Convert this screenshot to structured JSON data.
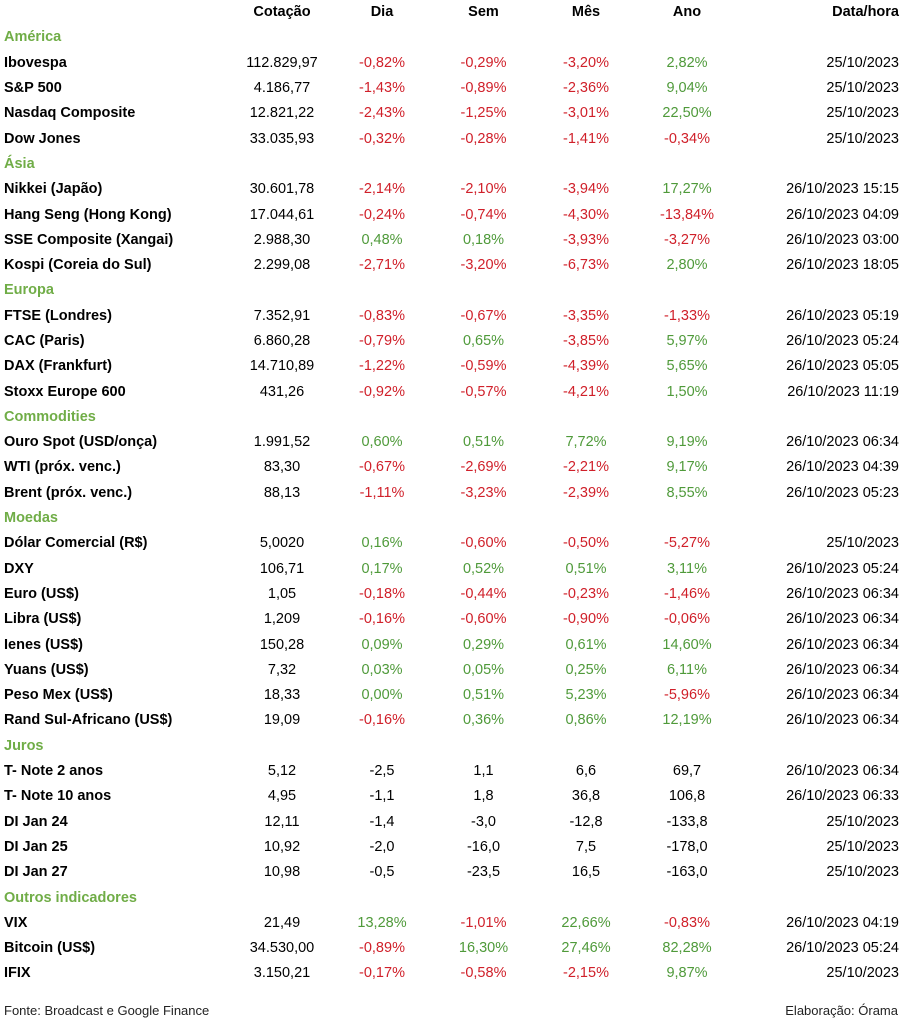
{
  "headers": {
    "name": "",
    "cotacao": "Cotação",
    "dia": "Dia",
    "sem": "Sem",
    "mes": "Mês",
    "ano": "Ano",
    "datahora": "Data/hora"
  },
  "colors": {
    "section": "#70ad47",
    "positive": "#4f9a3a",
    "negative": "#d0202a",
    "shade": "#f2f2f2"
  },
  "sections": [
    {
      "title": "América",
      "rows": [
        {
          "name": "Ibovespa",
          "cot": "112.829,97",
          "dia": "-0,82%",
          "sem": "-0,29%",
          "mes": "-3,20%",
          "ano": "2,82%",
          "dt": "25/10/2023"
        },
        {
          "name": "S&P 500",
          "cot": "4.186,77",
          "dia": "-1,43%",
          "sem": "-0,89%",
          "mes": "-2,36%",
          "ano": "9,04%",
          "dt": "25/10/2023"
        },
        {
          "name": "Nasdaq Composite",
          "cot": "12.821,22",
          "dia": "-2,43%",
          "sem": "-1,25%",
          "mes": "-3,01%",
          "ano": "22,50%",
          "dt": "25/10/2023"
        },
        {
          "name": "Dow Jones",
          "cot": "33.035,93",
          "dia": "-0,32%",
          "sem": "-0,28%",
          "mes": "-1,41%",
          "ano": "-0,34%",
          "dt": "25/10/2023"
        }
      ]
    },
    {
      "title": "Ásia",
      "rows": [
        {
          "name": "Nikkei (Japão)",
          "cot": "30.601,78",
          "dia": "-2,14%",
          "sem": "-2,10%",
          "mes": "-3,94%",
          "ano": "17,27%",
          "dt": "26/10/2023 15:15"
        },
        {
          "name": "Hang Seng (Hong Kong)",
          "cot": "17.044,61",
          "dia": "-0,24%",
          "sem": "-0,74%",
          "mes": "-4,30%",
          "ano": "-13,84%",
          "dt": "26/10/2023 04:09"
        },
        {
          "name": "SSE Composite (Xangai)",
          "cot": "2.988,30",
          "dia": "0,48%",
          "sem": "0,18%",
          "mes": "-3,93%",
          "ano": "-3,27%",
          "dt": "26/10/2023 03:00"
        },
        {
          "name": "Kospi (Coreia do Sul)",
          "cot": "2.299,08",
          "dia": "-2,71%",
          "sem": "-3,20%",
          "mes": "-6,73%",
          "ano": "2,80%",
          "dt": "26/10/2023 18:05"
        }
      ]
    },
    {
      "title": "Europa",
      "rows": [
        {
          "name": "FTSE (Londres)",
          "cot": "7.352,91",
          "dia": "-0,83%",
          "sem": "-0,67%",
          "mes": "-3,35%",
          "ano": "-1,33%",
          "dt": "26/10/2023 05:19"
        },
        {
          "name": "CAC (Paris)",
          "cot": "6.860,28",
          "dia": "-0,79%",
          "sem": "0,65%",
          "mes": "-3,85%",
          "ano": "5,97%",
          "dt": "26/10/2023 05:24"
        },
        {
          "name": "DAX (Frankfurt)",
          "cot": "14.710,89",
          "dia": "-1,22%",
          "sem": "-0,59%",
          "mes": "-4,39%",
          "ano": "5,65%",
          "dt": "26/10/2023 05:05"
        },
        {
          "name": "Stoxx Europe 600",
          "cot": "431,26",
          "dia": "-0,92%",
          "sem": "-0,57%",
          "mes": "-4,21%",
          "ano": "1,50%",
          "dt": "26/10/2023 11:19"
        }
      ]
    },
    {
      "title": "Commodities",
      "rows": [
        {
          "name": "Ouro Spot (USD/onça)",
          "cot": "1.991,52",
          "dia": "0,60%",
          "sem": "0,51%",
          "mes": "7,72%",
          "ano": "9,19%",
          "dt": "26/10/2023 06:34"
        },
        {
          "name": "WTI (próx. venc.)",
          "cot": "83,30",
          "dia": "-0,67%",
          "sem": "-2,69%",
          "mes": "-2,21%",
          "ano": "9,17%",
          "dt": "26/10/2023 04:39"
        },
        {
          "name": "Brent (próx. venc.)",
          "cot": "88,13",
          "dia": "-1,11%",
          "sem": "-3,23%",
          "mes": "-2,39%",
          "ano": "8,55%",
          "dt": "26/10/2023 05:23"
        }
      ]
    },
    {
      "title": "Moedas",
      "rows": [
        {
          "name": "Dólar Comercial (R$)",
          "cot": "5,0020",
          "dia": "0,16%",
          "sem": "-0,60%",
          "mes": "-0,50%",
          "ano": "-5,27%",
          "dt": "25/10/2023"
        },
        {
          "name": "DXY",
          "cot": "106,71",
          "dia": "0,17%",
          "sem": "0,52%",
          "mes": "0,51%",
          "ano": "3,11%",
          "dt": "26/10/2023 05:24"
        },
        {
          "name": "Euro (US$)",
          "cot": "1,05",
          "dia": "-0,18%",
          "sem": "-0,44%",
          "mes": "-0,23%",
          "ano": "-1,46%",
          "dt": "26/10/2023 06:34"
        },
        {
          "name": "Libra (US$)",
          "cot": "1,209",
          "dia": "-0,16%",
          "sem": "-0,60%",
          "mes": "-0,90%",
          "ano": "-0,06%",
          "dt": "26/10/2023 06:34"
        },
        {
          "name": "Ienes (US$)",
          "cot": "150,28",
          "dia": "0,09%",
          "sem": "0,29%",
          "mes": "0,61%",
          "ano": "14,60%",
          "dt": "26/10/2023 06:34"
        },
        {
          "name": "Yuans (US$)",
          "cot": "7,32",
          "dia": "0,03%",
          "sem": "0,05%",
          "mes": "0,25%",
          "ano": "6,11%",
          "dt": "26/10/2023 06:34"
        },
        {
          "name": "Peso Mex (US$)",
          "cot": "18,33",
          "dia": "0,00%",
          "sem": "0,51%",
          "mes": "5,23%",
          "ano": "-5,96%",
          "dt": "26/10/2023 06:34"
        },
        {
          "name": "Rand Sul-Africano (US$)",
          "cot": "19,09",
          "dia": "-0,16%",
          "sem": "0,36%",
          "mes": "0,86%",
          "ano": "12,19%",
          "dt": "26/10/2023 06:34"
        }
      ]
    },
    {
      "title": "Juros",
      "rows": [
        {
          "name": "T- Note 2 anos",
          "cot": "5,12",
          "dia": "-2,5",
          "sem": "1,1",
          "mes": "6,6",
          "ano": "69,7",
          "dt": "26/10/2023 06:34"
        },
        {
          "name": "T- Note 10 anos",
          "cot": "4,95",
          "dia": "-1,1",
          "sem": "1,8",
          "mes": "36,8",
          "ano": "106,8",
          "dt": "26/10/2023 06:33"
        },
        {
          "name": "DI Jan 24",
          "cot": "12,11",
          "dia": "-1,4",
          "sem": "-3,0",
          "mes": "-12,8",
          "ano": "-133,8",
          "dt": "25/10/2023"
        },
        {
          "name": "DI Jan 25",
          "cot": "10,92",
          "dia": "-2,0",
          "sem": "-16,0",
          "mes": "7,5",
          "ano": "-178,0",
          "dt": "25/10/2023"
        },
        {
          "name": "DI Jan 27",
          "cot": "10,98",
          "dia": "-0,5",
          "sem": "-23,5",
          "mes": "16,5",
          "ano": "-163,0",
          "dt": "25/10/2023"
        }
      ]
    },
    {
      "title": "Outros indicadores",
      "rows": [
        {
          "name": "VIX",
          "cot": "21,49",
          "dia": "13,28%",
          "sem": "-1,01%",
          "mes": "22,66%",
          "ano": "-0,83%",
          "dt": "26/10/2023 04:19"
        },
        {
          "name": "Bitcoin (US$)",
          "cot": "34.530,00",
          "dia": "-0,89%",
          "sem": "16,30%",
          "mes": "27,46%",
          "ano": "82,28%",
          "dt": "26/10/2023 05:24"
        },
        {
          "name": "IFIX",
          "cot": "3.150,21",
          "dia": "-0,17%",
          "sem": "-0,58%",
          "mes": "-2,15%",
          "ano": "9,87%",
          "dt": "25/10/2023"
        }
      ]
    }
  ],
  "footer": {
    "source": "Fonte: Broadcast e Google Finance",
    "author": "Elaboração: Órama"
  }
}
